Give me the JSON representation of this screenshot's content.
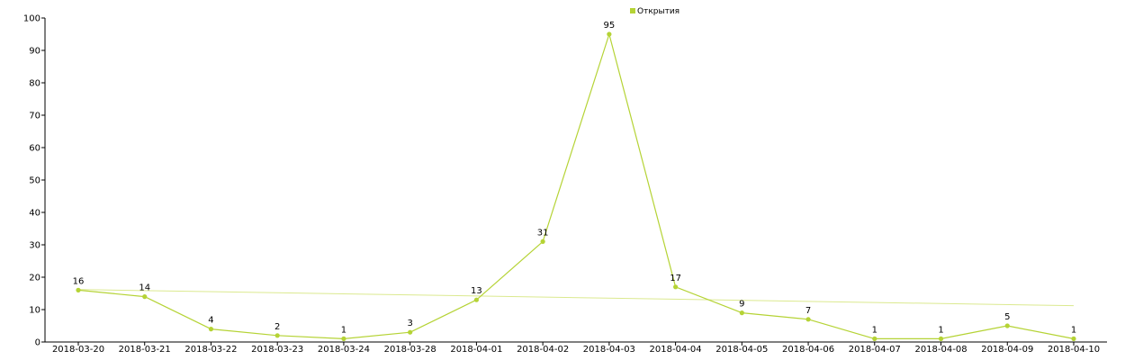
{
  "chart_data": {
    "type": "line",
    "title": "",
    "xlabel": "",
    "ylabel": "",
    "categories": [
      "2018-03-20",
      "2018-03-21",
      "2018-03-22",
      "2018-03-23",
      "2018-03-24",
      "2018-03-28",
      "2018-04-01",
      "2018-04-02",
      "2018-04-03",
      "2018-04-04",
      "2018-04-05",
      "2018-04-06",
      "2018-04-07",
      "2018-04-08",
      "2018-04-09",
      "2018-04-10"
    ],
    "series": [
      {
        "name": "Открытия",
        "values": [
          16,
          14,
          4,
          2,
          1,
          3,
          13,
          31,
          95,
          17,
          9,
          7,
          1,
          1,
          5,
          1
        ]
      }
    ],
    "trendline": {
      "start": 16.2,
      "end": 11.2
    },
    "ylim": [
      0,
      100
    ],
    "yticks": [
      0,
      10,
      20,
      30,
      40,
      50,
      60,
      70,
      80,
      90,
      100
    ],
    "grid": false,
    "legend_position": "top-center",
    "colors": {
      "series": "#b5d335",
      "trend": "#dbe98f",
      "axis": "#000000"
    }
  }
}
